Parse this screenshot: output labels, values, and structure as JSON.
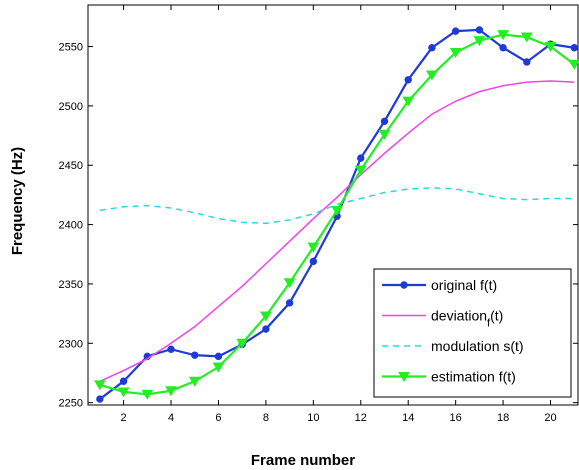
{
  "chart_data": {
    "type": "line",
    "title": "",
    "xlabel": "Frame number",
    "ylabel": "Frequency (Hz)",
    "xlim": [
      0.5,
      21.2
    ],
    "ylim": [
      2248,
      2585
    ],
    "xticks": [
      2,
      4,
      6,
      8,
      10,
      12,
      14,
      16,
      18,
      20
    ],
    "yticks": [
      2250,
      2300,
      2350,
      2400,
      2450,
      2500,
      2550
    ],
    "grid": false,
    "legend_position": "lower-right",
    "x": [
      1,
      2,
      3,
      4,
      5,
      6,
      7,
      8,
      9,
      10,
      11,
      12,
      13,
      14,
      15,
      16,
      17,
      18,
      19,
      20,
      21
    ],
    "series": [
      {
        "name": "original f(t)",
        "color": "#1f3bd6",
        "line_style": "solid",
        "marker": "circle",
        "values": [
          2253,
          2268,
          2289,
          2295,
          2290,
          2289,
          2299,
          2312,
          2334,
          2369,
          2407,
          2456,
          2487,
          2522,
          2549,
          2563,
          2564,
          2549,
          2537,
          2552,
          2549
        ]
      },
      {
        "name": "deviation",
        "name_subscript": "f",
        "name_suffix": "(t)",
        "color": "#ee44ee",
        "line_style": "solid",
        "marker": "none",
        "values": [
          2268,
          2277,
          2287,
          2300,
          2314,
          2331,
          2348,
          2367,
          2386,
          2405,
          2423,
          2442,
          2460,
          2477,
          2493,
          2504,
          2512,
          2517,
          2520,
          2521,
          2520
        ]
      },
      {
        "name": "modulation s(t)",
        "color": "#22dddd",
        "line_style": "dashed",
        "marker": "none",
        "values": [
          2412,
          2415,
          2416,
          2414,
          2410,
          2405,
          2402,
          2401,
          2404,
          2409,
          2417,
          2422,
          2427,
          2430,
          2431,
          2430,
          2426,
          2422,
          2421,
          2422,
          2422
        ]
      },
      {
        "name": "estimation f(t)",
        "color": "#22ee22",
        "line_style": "solid",
        "marker": "triangle-down",
        "values": [
          2265,
          2259,
          2257,
          2260,
          2268,
          2280,
          2300,
          2323,
          2351,
          2381,
          2412,
          2446,
          2476,
          2504,
          2526,
          2545,
          2555,
          2560,
          2558,
          2550,
          2535
        ]
      }
    ]
  }
}
